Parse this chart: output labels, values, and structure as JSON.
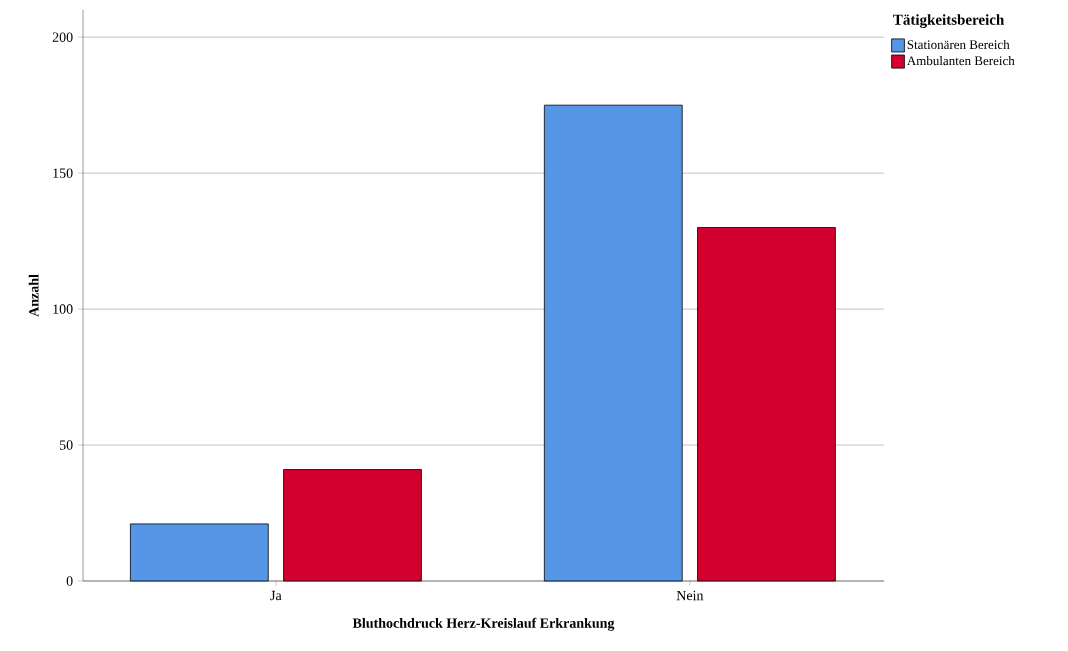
{
  "chart_data": {
    "type": "bar",
    "xlabel": "Bluthochdruck Herz-Kreislauf Erkrankung",
    "ylabel": "Anzahl",
    "legend_title": "Tätigkeitsbereich",
    "categories": [
      "Ja",
      "Nein"
    ],
    "series": [
      {
        "name": "Stationären Bereich",
        "color": "#5596e6",
        "values": [
          21,
          175
        ]
      },
      {
        "name": "Ambulanten Bereich",
        "color": "#d2002e",
        "values": [
          41,
          130
        ]
      }
    ],
    "ylim": [
      0,
      210
    ],
    "yticks": [
      0,
      50,
      100,
      150,
      200
    ],
    "grid": "y",
    "legend": "top right"
  }
}
